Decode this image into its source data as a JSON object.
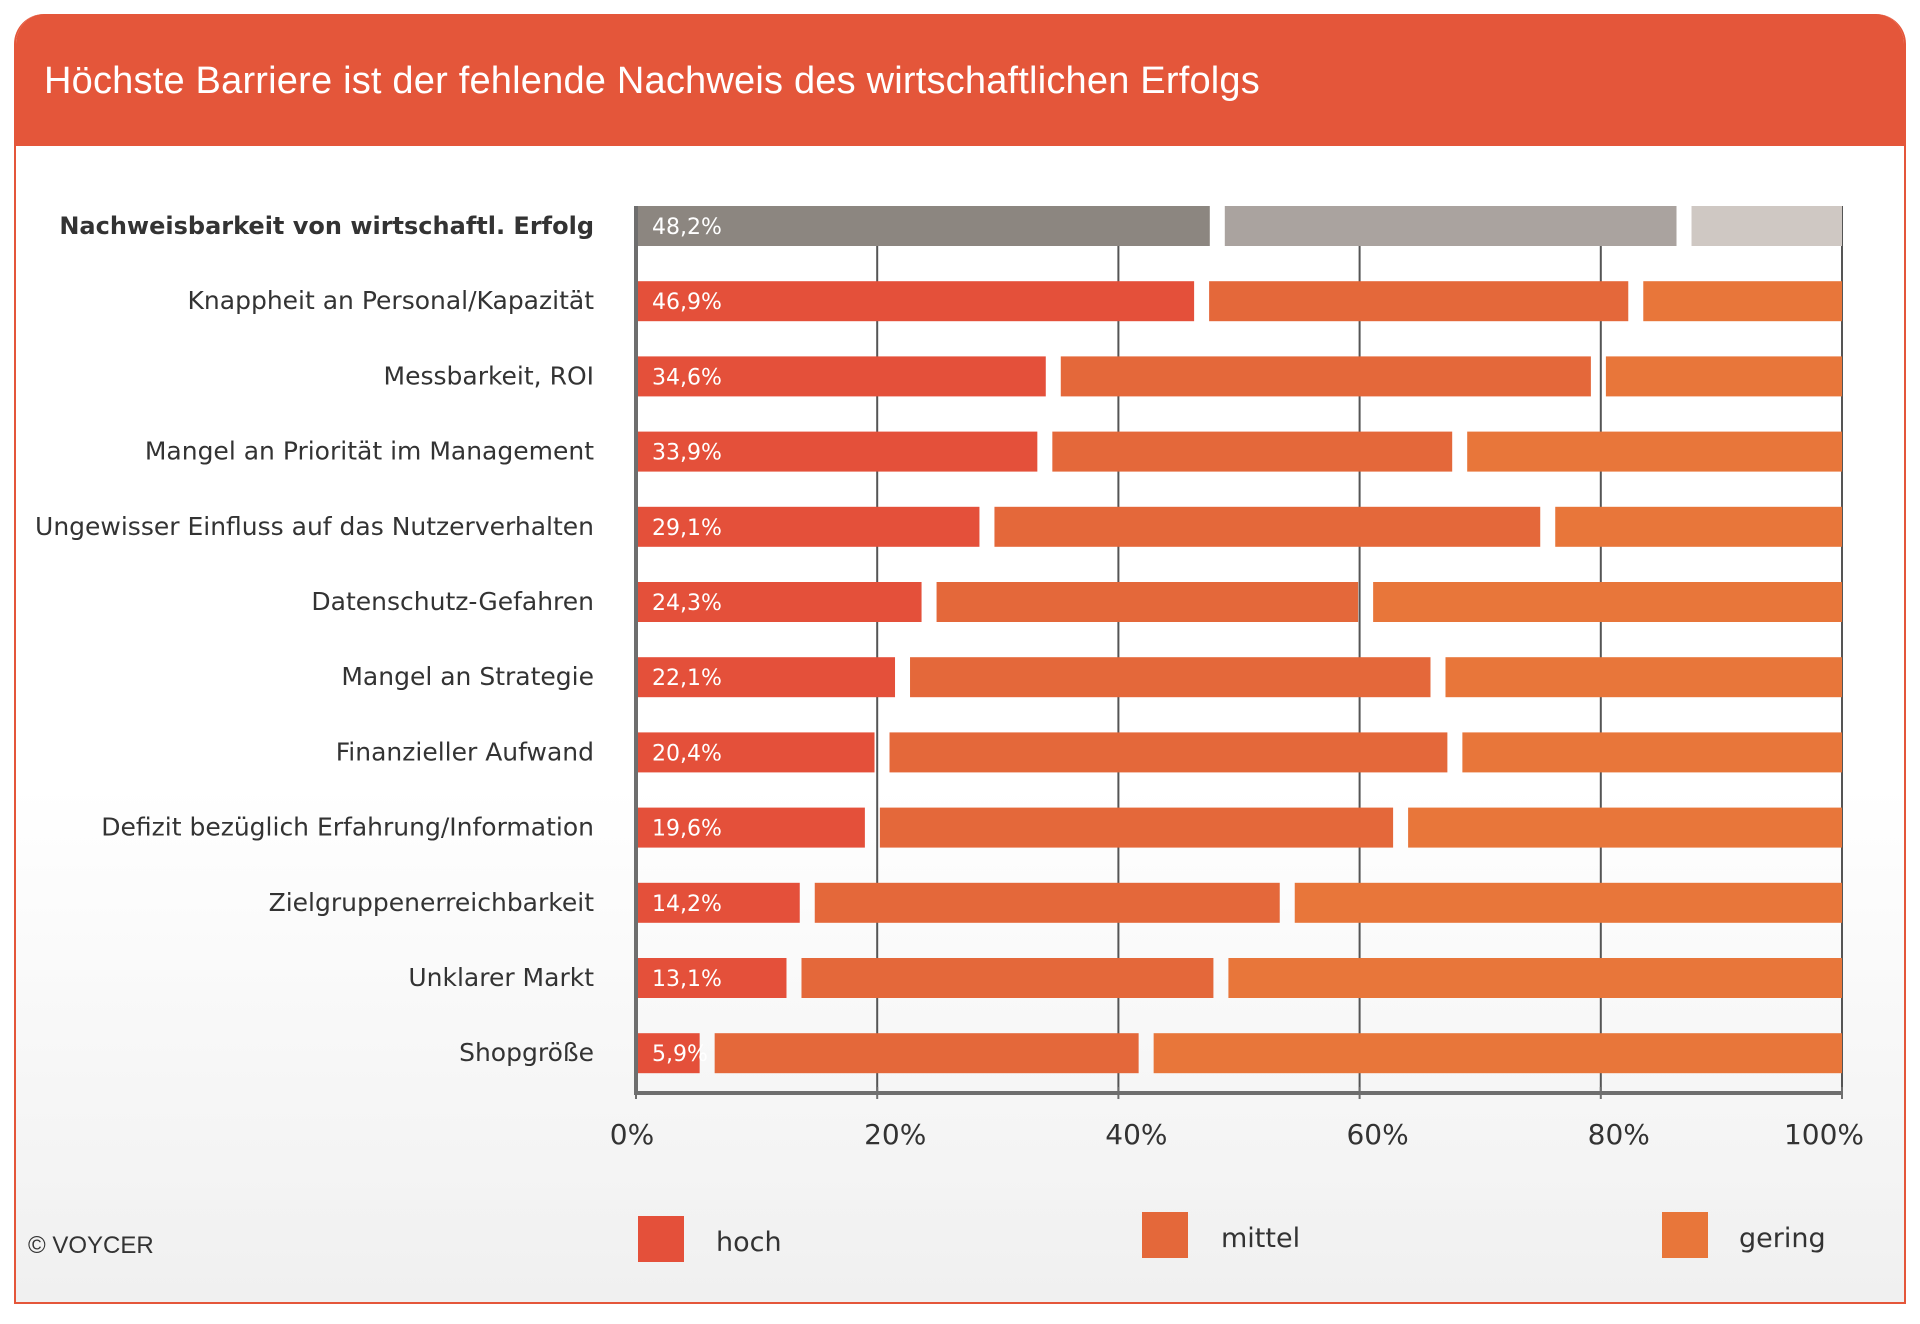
{
  "header": {
    "title": "Höchste Barriere ist der fehlende Nachweis des wirtschaftlichen Erfolgs"
  },
  "footer": {
    "copyright": "© VOYCER"
  },
  "colors": {
    "hoch": "#e4503a",
    "mittel": "#e4683a",
    "gering": "#e8763a",
    "highlight_hoch": "#8c8680",
    "highlight_mittel": "#aaa39f",
    "highlight_gering": "#cfc8c3",
    "axis": "#6e6e6e",
    "grid": "#555555"
  },
  "chart_data": {
    "type": "bar",
    "orientation": "horizontal",
    "stacked": true,
    "categories": [
      "Nachweisbarkeit von wirtschaftl. Erfolg",
      "Knappheit an Personal/Kapazität",
      "Messbarkeit, ROI",
      "Mangel an Priorität im Management",
      "Ungewisser Einfluss auf das Nutzerverhalten",
      "Datenschutz-Gefahren",
      "Mangel an Strategie",
      "Finanzieller Aufwand",
      "Defizit bezüglich Erfahrung/Information",
      "Zielgruppenerreichbarkeit",
      "Unklarer Markt",
      "Shopgröße"
    ],
    "highlight_index": 0,
    "series": [
      {
        "name": "hoch",
        "values": [
          48.2,
          46.9,
          34.6,
          33.9,
          29.1,
          24.3,
          22.1,
          20.4,
          19.6,
          14.2,
          13.1,
          5.9
        ]
      },
      {
        "name": "mittel",
        "values": [
          38.7,
          36.0,
          45.2,
          34.4,
          46.5,
          36.2,
          44.4,
          47.5,
          43.8,
          39.8,
          35.4,
          36.4
        ]
      },
      {
        "name": "gering",
        "values": [
          13.1,
          17.1,
          20.2,
          31.7,
          24.4,
          39.5,
          33.5,
          32.1,
          36.6,
          46.0,
          51.5,
          57.7
        ]
      }
    ],
    "data_labels": [
      "48,2%",
      "46,9%",
      "34,6%",
      "33,9%",
      "29,1%",
      "24,3%",
      "22,1%",
      "20,4%",
      "19,6%",
      "14,2%",
      "13,1%",
      "5,9%"
    ],
    "x_ticks": [
      "0%",
      "20%",
      "40%",
      "60%",
      "80%",
      "100%"
    ],
    "xlim": [
      0,
      100
    ],
    "grid": true,
    "legend": {
      "position": "bottom",
      "entries": [
        "hoch",
        "mittel",
        "gering"
      ]
    }
  }
}
